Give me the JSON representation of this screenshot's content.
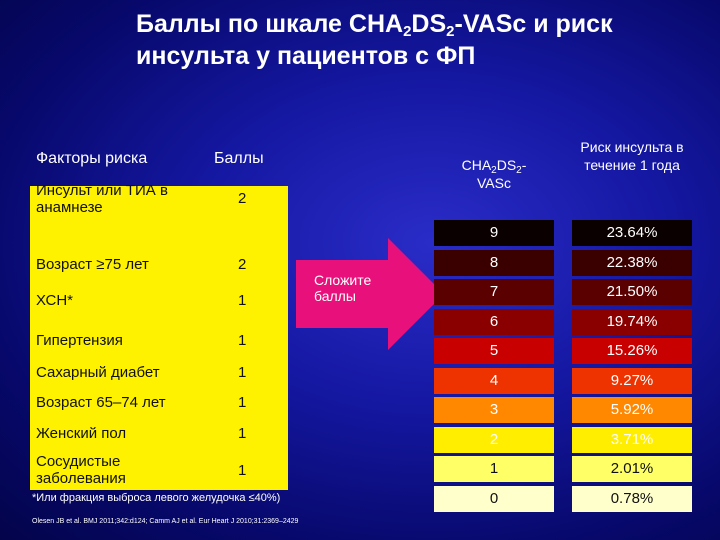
{
  "title": {
    "line1_a": "Баллы по шкале CHA",
    "line1_sub1": "2",
    "line1_b": "DS",
    "line1_sub2": "2",
    "line1_c": "-VASc и риск",
    "line2": "инсульта у пациентов с ФП"
  },
  "left_table": {
    "header_factors": "Факторы риска",
    "header_points": "Баллы",
    "rows": [
      {
        "label": "Инсульт или ТИА в анамнезе",
        "points": "2"
      },
      {
        "label": "Возраст ≥75 лет",
        "points": "2"
      },
      {
        "label": "ХСН*",
        "points": "1"
      },
      {
        "label": "Гипертензия",
        "points": "1"
      },
      {
        "label": "Сахарный диабет",
        "points": "1"
      },
      {
        "label": "Возраст 65–74 лет",
        "points": "1"
      },
      {
        "label": "Женский пол",
        "points": "1"
      },
      {
        "label": "Сосудистые заболевания",
        "points": "1"
      }
    ]
  },
  "arrow": {
    "label": "Сложите баллы"
  },
  "right_table": {
    "header_score_a": "CHA",
    "header_score_sub1": "2",
    "header_score_b": "DS",
    "header_score_sub2": "2",
    "header_score_c": "-",
    "header_score_d": "VASc",
    "header_risk": "Риск инсульта в течение 1 года",
    "rows": [
      {
        "score": "9",
        "risk": "23.64%",
        "color": "#0a0000",
        "text_color": "#ffffff"
      },
      {
        "score": "8",
        "risk": "22.38%",
        "color": "#3a0000",
        "text_color": "#ffffff"
      },
      {
        "score": "7",
        "risk": "21.50%",
        "color": "#5a0000",
        "text_color": "#ffffff"
      },
      {
        "score": "6",
        "risk": "19.74%",
        "color": "#8a0000",
        "text_color": "#ffffff"
      },
      {
        "score": "5",
        "risk": "15.26%",
        "color": "#c80000",
        "text_color": "#ffffff"
      },
      {
        "score": "4",
        "risk": "9.27%",
        "color": "#ee3300",
        "text_color": "#ffffff"
      },
      {
        "score": "3",
        "risk": "5.92%",
        "color": "#ff8800",
        "text_color": "#ffffff"
      },
      {
        "score": "2",
        "risk": "3.71%",
        "color": "#ffee00",
        "text_color": "#ffffff"
      },
      {
        "score": "1",
        "risk": "2.01%",
        "color": "#ffff66",
        "text_color": "#111111"
      },
      {
        "score": "0",
        "risk": "0.78%",
        "color": "#ffffcc",
        "text_color": "#111111"
      }
    ]
  },
  "footnote": "*Или фракция выброса левого желудочка ≤40%)",
  "references": "Olesen JB et al. BMJ 2011;342:d124; Camm AJ et al. Eur Heart J 2010;31:2369–2429"
}
